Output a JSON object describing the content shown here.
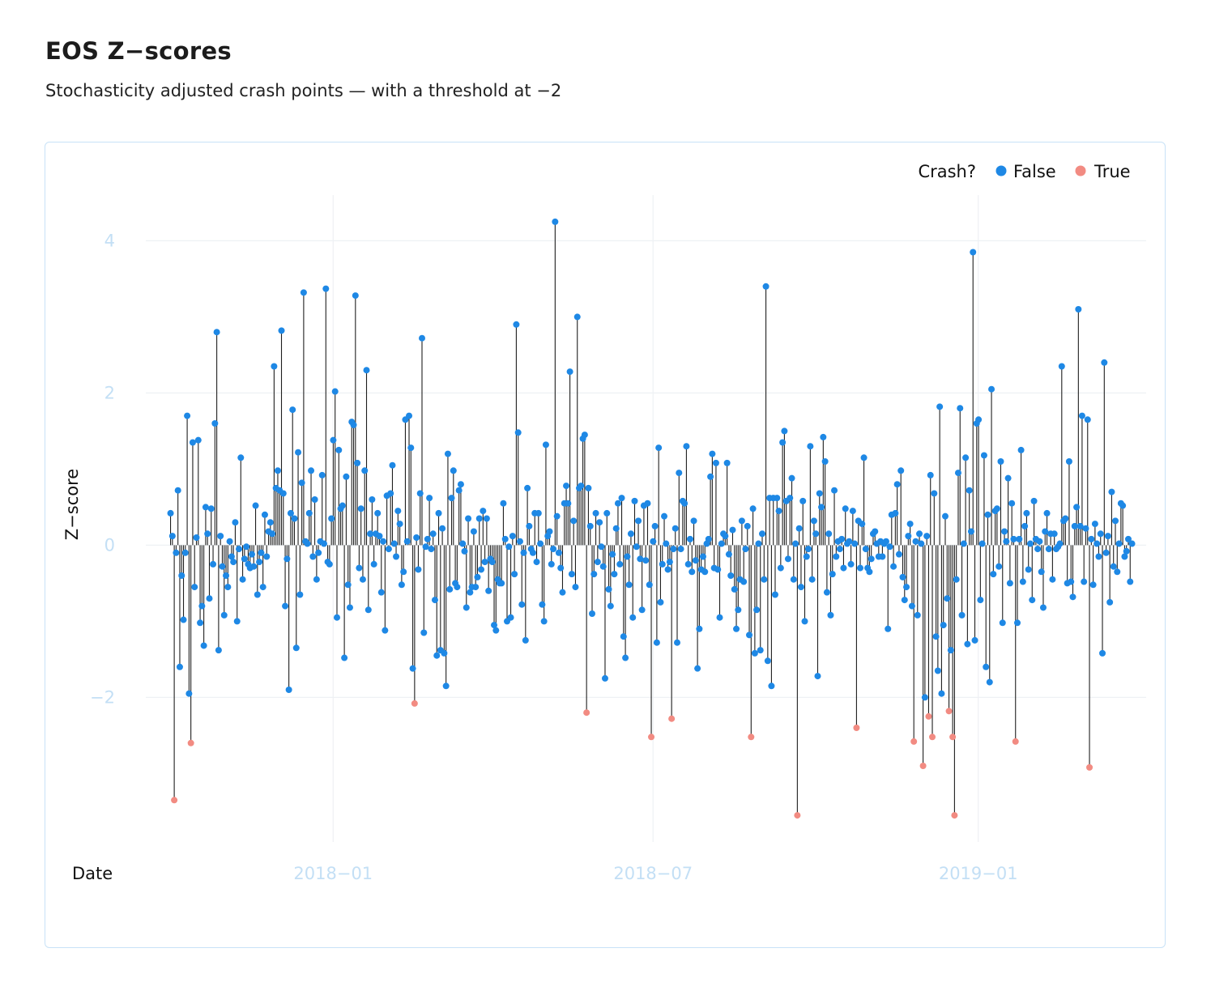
{
  "header": {
    "title": "EOS Z−scores",
    "subtitle": "Stochasticity adjusted crash points — with a threshold at −2"
  },
  "legend": {
    "title": "Crash?",
    "placement": "top-right",
    "entries": [
      {
        "label": "False",
        "color": "#1e88e5"
      },
      {
        "label": "True",
        "color": "#f28b82"
      }
    ]
  },
  "colors": {
    "stem": "#1f1f1f",
    "grid": "#eef1f4",
    "tick_label": "#c3dff5",
    "panel_border": "#c8e2f7"
  },
  "chart_data": {
    "type": "scatter",
    "xlabel": "Date",
    "ylabel": "Z−score",
    "threshold": -2,
    "grid": true,
    "x_range": [
      "2017-09-17",
      "2019-04-06"
    ],
    "ylim": [
      -3.9,
      4.6
    ],
    "x_ticks": [
      {
        "date": "2018-01-01",
        "label": "2018−01"
      },
      {
        "date": "2018-07-01",
        "label": "2018−07"
      },
      {
        "date": "2019-01-01",
        "label": "2019−01"
      }
    ],
    "y_ticks": [
      {
        "value": -2,
        "label": "−2"
      },
      {
        "value": 0,
        "label": "0"
      },
      {
        "value": 2,
        "label": "2"
      },
      {
        "value": 4,
        "label": "4"
      }
    ],
    "start_date": "2017-10-01",
    "end_date": "2019-03-29",
    "z": [
      0.42,
      0.12,
      -3.35,
      -0.1,
      0.72,
      -1.6,
      -0.4,
      -0.98,
      -0.1,
      1.7,
      -1.95,
      -2.6,
      1.35,
      -0.55,
      0.1,
      1.38,
      -1.02,
      -0.8,
      -1.32,
      0.5,
      0.15,
      -0.7,
      0.48,
      -0.25,
      1.6,
      2.8,
      -1.38,
      0.12,
      -0.28,
      -0.92,
      -0.4,
      -0.55,
      0.05,
      -0.15,
      -0.22,
      0.3,
      -1.0,
      -0.05,
      1.15,
      -0.45,
      -0.18,
      -0.02,
      -0.25,
      -0.3,
      -0.12,
      -0.28,
      0.52,
      -0.65,
      -0.22,
      -0.1,
      -0.55,
      0.4,
      -0.15,
      0.18,
      0.3,
      0.15,
      2.35,
      0.75,
      0.98,
      0.72,
      2.82,
      0.68,
      -0.8,
      -0.18,
      -1.9,
      0.42,
      1.78,
      0.35,
      -1.35,
      1.22,
      -0.65,
      0.82,
      3.32,
      0.05,
      0.02,
      0.42,
      0.98,
      -0.15,
      0.6,
      -0.45,
      -0.1,
      0.05,
      0.92,
      0.02,
      3.37,
      -0.22,
      -0.25,
      0.35,
      1.38,
      2.02,
      -0.95,
      1.25,
      0.48,
      0.52,
      -1.48,
      0.9,
      -0.52,
      -0.82,
      1.62,
      1.58,
      3.28,
      1.08,
      -0.3,
      0.48,
      -0.45,
      0.98,
      2.3,
      -0.85,
      0.15,
      0.6,
      -0.25,
      0.15,
      0.42,
      0.12,
      -0.62,
      0.05,
      -1.12,
      0.65,
      -0.05,
      0.68,
      1.05,
      0.02,
      -0.15,
      0.45,
      0.28,
      -0.52,
      -0.35,
      1.65,
      0.05,
      1.7,
      1.28,
      -1.62,
      -2.08,
      0.1,
      -0.32,
      0.68,
      2.72,
      -1.15,
      -0.02,
      0.08,
      0.62,
      -0.05,
      0.15,
      -0.72,
      -1.45,
      0.42,
      -1.38,
      0.22,
      -1.42,
      -1.85,
      1.2,
      -0.58,
      0.62,
      0.98,
      -0.5,
      -0.55,
      0.72,
      0.8,
      0.02,
      -0.08,
      -0.82,
      0.35,
      -0.62,
      -0.55,
      0.18,
      -0.55,
      -0.42,
      0.35,
      -0.32,
      0.45,
      -0.22,
      0.35,
      -0.6,
      -0.18,
      -0.22,
      -1.05,
      -1.12,
      -0.45,
      -0.5,
      -0.5,
      0.55,
      0.08,
      -1.0,
      -0.02,
      -0.95,
      0.12,
      -0.38,
      2.9,
      1.48,
      0.05,
      -0.78,
      -0.1,
      -1.25,
      0.75,
      0.25,
      -0.05,
      -0.1,
      0.42,
      -0.22,
      0.42,
      0.02,
      -0.78,
      -1.0,
      1.32,
      0.12,
      0.18,
      -0.25,
      -0.05,
      4.25,
      0.38,
      -0.1,
      -0.3,
      -0.62,
      0.55,
      0.78,
      0.55,
      2.28,
      -0.38,
      0.32,
      -0.55,
      3.0,
      0.75,
      0.78,
      1.4,
      1.45,
      -2.2,
      0.75,
      0.25,
      -0.9,
      -0.38,
      0.42,
      -0.22,
      0.3,
      -0.02,
      -0.28,
      -1.75,
      0.42,
      -0.58,
      -0.8,
      -0.12,
      -0.38,
      0.22,
      0.55,
      -0.25,
      0.62,
      -1.2,
      -1.48,
      -0.15,
      -0.52,
      0.15,
      -0.95,
      0.58,
      -0.02,
      0.32,
      -0.18,
      -0.85,
      0.52,
      -0.2,
      0.55,
      -0.52,
      -2.52,
      0.05,
      0.25,
      -1.28,
      1.28,
      -0.75,
      -0.25,
      0.38,
      0.02,
      -0.32,
      -0.22,
      -2.28,
      -0.05,
      0.22,
      -1.28,
      0.95,
      -0.05,
      0.58,
      0.55,
      1.3,
      -0.25,
      0.08,
      -0.35,
      0.32,
      -0.2,
      -1.62,
      -1.1,
      -0.32,
      -0.15,
      -0.35,
      0.02,
      0.08,
      0.9,
      1.2,
      -0.3,
      1.08,
      -0.32,
      -0.95,
      0.02,
      0.15,
      0.12,
      1.08,
      -0.12,
      -0.4,
      0.2,
      -0.58,
      -1.1,
      -0.85,
      -0.45,
      0.32,
      -0.48,
      -0.05,
      0.25,
      -1.18,
      -2.52,
      0.48,
      -1.42,
      -0.85,
      0.02,
      -1.38,
      0.15,
      -0.45,
      3.4,
      -1.52,
      0.62,
      -1.85,
      0.62,
      -0.65,
      0.62,
      0.45,
      -0.3,
      1.35,
      1.5,
      0.58,
      -0.18,
      0.62,
      0.88,
      -0.45,
      0.02,
      -3.55,
      0.22,
      -0.55,
      0.58,
      -1.0,
      -0.15,
      -0.05,
      1.3,
      -0.45,
      0.32,
      0.15,
      -1.72,
      0.68,
      0.5,
      1.42,
      1.1,
      -0.62,
      0.15,
      -0.92,
      -0.38,
      0.72,
      -0.15,
      0.05,
      -0.05,
      0.08,
      -0.3,
      0.48,
      0.02,
      0.05,
      -0.25,
      0.45,
      0.02,
      -2.4,
      0.32,
      -0.3,
      0.28,
      1.15,
      -0.05,
      -0.3,
      -0.35,
      -0.18,
      0.15,
      0.18,
      0.02,
      -0.15,
      0.05,
      -0.15,
      0.02,
      0.05,
      -1.1,
      -0.02,
      0.4,
      -0.28,
      0.42,
      0.8,
      -0.12,
      0.98,
      -0.42,
      -0.72,
      -0.55,
      0.12,
      0.28,
      -0.8,
      -2.58,
      0.05,
      -0.92,
      0.15,
      0.02,
      -2.9,
      -2.0,
      0.12,
      -2.25,
      0.92,
      -2.52,
      0.68,
      -1.2,
      -1.65,
      1.82,
      -1.95,
      -1.05,
      0.38,
      -0.7,
      -2.18,
      -1.38,
      -2.52,
      -3.55,
      -0.45,
      0.95,
      1.8,
      -0.92,
      0.02,
      1.15,
      -1.3,
      0.72,
      0.18,
      3.85,
      -1.25,
      1.6,
      1.65,
      -0.72,
      0.02,
      1.18,
      -1.6,
      0.4,
      -1.8,
      2.05,
      -0.38,
      0.45,
      0.48,
      -0.28,
      1.1,
      -1.02,
      0.18,
      0.05,
      0.88,
      -0.5,
      0.55,
      0.08,
      -2.58,
      -1.02,
      0.08,
      1.25,
      -0.48,
      0.25,
      0.42,
      -0.32,
      0.02,
      -0.72,
      0.58,
      0.08,
      -0.05,
      0.05,
      -0.35,
      -0.82,
      0.18,
      0.42,
      -0.05,
      0.15,
      -0.45,
      0.15,
      -0.05,
      -0.02,
      0.02,
      2.35,
      0.32,
      0.35,
      -0.5,
      1.1,
      -0.48,
      -0.68,
      0.25,
      0.5,
      3.1,
      0.25,
      1.7,
      -0.48,
      0.22,
      1.65,
      -2.92,
      0.08,
      -0.52,
      0.28,
      0.02,
      -0.15,
      0.15,
      -1.42,
      2.4,
      -0.1,
      0.12,
      -0.75,
      0.7,
      -0.28,
      0.32,
      -0.35,
      0.02,
      0.55,
      0.52,
      -0.15,
      -0.08,
      0.08,
      -0.48,
      0.02
    ]
  }
}
